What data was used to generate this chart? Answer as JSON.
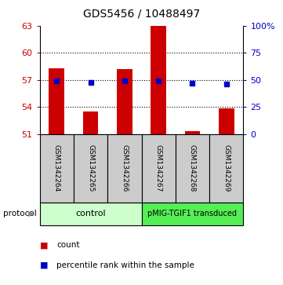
{
  "title": "GDS5456 / 10488497",
  "samples": [
    "GSM1342264",
    "GSM1342265",
    "GSM1342266",
    "GSM1342267",
    "GSM1342268",
    "GSM1342269"
  ],
  "bar_values": [
    58.3,
    53.5,
    58.2,
    63.0,
    51.3,
    53.8
  ],
  "bar_base": 51.0,
  "blue_values": [
    56.9,
    56.7,
    56.9,
    56.9,
    56.6,
    56.5
  ],
  "ylim_left": [
    51,
    63
  ],
  "yticks_left": [
    51,
    54,
    57,
    60,
    63
  ],
  "yticks_right": [
    0,
    25,
    50,
    75,
    100
  ],
  "ytick_labels_right": [
    "0",
    "25",
    "50",
    "75",
    "100%"
  ],
  "bar_color": "#cc0000",
  "blue_color": "#0000cc",
  "protocol_labels": [
    "control",
    "pMIG-TGIF1 transduced"
  ],
  "control_color": "#ccffcc",
  "transduced_color": "#55ee55",
  "sample_box_color": "#cccccc",
  "left_axis_color": "#cc0000",
  "right_axis_color": "#0000cc",
  "legend_count_color": "#cc0000",
  "legend_pct_color": "#0000cc",
  "gridline_ticks": [
    54,
    57,
    60
  ]
}
